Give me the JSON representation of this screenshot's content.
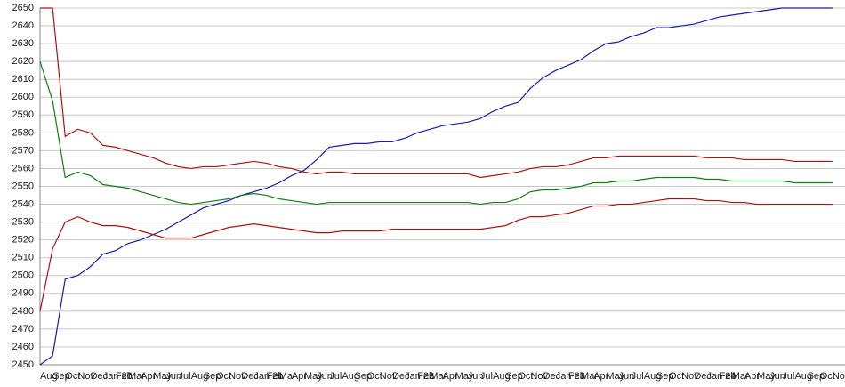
{
  "chart_data": {
    "type": "line",
    "categories": [
      "Aug",
      "Sep",
      "Oct",
      "Nov",
      "Dec",
      "Jan 20",
      "Feb",
      "Mar",
      "Apr",
      "May",
      "Jun",
      "Jul",
      "Aug",
      "Sep",
      "Oct",
      "Nov",
      "Dec",
      "Jan 21",
      "Feb",
      "Mar",
      "Apr",
      "May",
      "Jun",
      "Jul",
      "Aug",
      "Sep",
      "Oct",
      "Nov",
      "Dec",
      "Jan 22",
      "Feb",
      "Mar",
      "Apr",
      "May",
      "Jun",
      "Jul",
      "Aug",
      "Sep",
      "Oct",
      "Nov",
      "Dec",
      "Jan 23",
      "Feb",
      "Mar",
      "Apr",
      "May",
      "Jun",
      "Jul",
      "Aug",
      "Sep",
      "Oct",
      "Nov",
      "Dec",
      "Jan 24",
      "Feb",
      "Mar",
      "Apr",
      "May",
      "Jun",
      "Jul",
      "Aug",
      "Sep",
      "Oct",
      "Nov"
    ],
    "series": [
      {
        "color": "#1c1ca8",
        "values": [
          2450,
          2455,
          2498,
          2500,
          2505,
          2512,
          2514,
          2518,
          2520,
          2523,
          2526,
          2530,
          2534,
          2538,
          2540,
          2542,
          2545,
          2547,
          2549,
          2552,
          2556,
          2559,
          2565,
          2572,
          2573,
          2574,
          2574,
          2575,
          2575,
          2577,
          2580,
          2582,
          2584,
          2585,
          2586,
          2588,
          2592,
          2595,
          2597,
          2605,
          2611,
          2615,
          2618,
          2621,
          2626,
          2630,
          2631,
          2634,
          2636,
          2639,
          2639,
          2640,
          2641,
          2643,
          2645,
          2646,
          2647,
          2648,
          2649,
          2650,
          2650,
          2650,
          2650,
          2650
        ]
      },
      {
        "color": "#b01010",
        "values": [
          2650,
          2650,
          2578,
          2582,
          2580,
          2573,
          2572,
          2570,
          2568,
          2566,
          2563,
          2561,
          2560,
          2561,
          2561,
          2562,
          2563,
          2564,
          2563,
          2561,
          2560,
          2558,
          2557,
          2558,
          2558,
          2557,
          2557,
          2557,
          2557,
          2557,
          2557,
          2557,
          2557,
          2557,
          2557,
          2555,
          2556,
          2557,
          2558,
          2560,
          2561,
          2561,
          2562,
          2564,
          2566,
          2566,
          2567,
          2567,
          2567,
          2567,
          2567,
          2567,
          2567,
          2566,
          2566,
          2566,
          2565,
          2565,
          2565,
          2565,
          2564,
          2564,
          2564,
          2564
        ]
      },
      {
        "color": "#108010",
        "values": [
          2620,
          2598,
          2555,
          2558,
          2556,
          2551,
          2550,
          2549,
          2547,
          2545,
          2543,
          2541,
          2540,
          2541,
          2542,
          2543,
          2545,
          2546,
          2545,
          2543,
          2542,
          2541,
          2540,
          2541,
          2541,
          2541,
          2541,
          2541,
          2541,
          2541,
          2541,
          2541,
          2541,
          2541,
          2541,
          2540,
          2541,
          2541,
          2543,
          2547,
          2548,
          2548,
          2549,
          2550,
          2552,
          2552,
          2553,
          2553,
          2554,
          2555,
          2555,
          2555,
          2555,
          2554,
          2554,
          2553,
          2553,
          2553,
          2553,
          2553,
          2552,
          2552,
          2552,
          2552
        ]
      },
      {
        "color": "#b01010",
        "values": [
          2480,
          2515,
          2530,
          2533,
          2530,
          2528,
          2528,
          2527,
          2525,
          2523,
          2521,
          2521,
          2521,
          2523,
          2525,
          2527,
          2528,
          2529,
          2528,
          2527,
          2526,
          2525,
          2524,
          2524,
          2525,
          2525,
          2525,
          2525,
          2526,
          2526,
          2526,
          2526,
          2526,
          2526,
          2526,
          2526,
          2527,
          2528,
          2531,
          2533,
          2533,
          2534,
          2535,
          2537,
          2539,
          2539,
          2540,
          2540,
          2541,
          2542,
          2543,
          2543,
          2543,
          2542,
          2542,
          2541,
          2541,
          2540,
          2540,
          2540,
          2540,
          2540,
          2540,
          2540
        ]
      }
    ],
    "ylim": [
      2450,
      2650
    ],
    "yticks": [
      2450,
      2460,
      2470,
      2480,
      2490,
      2500,
      2510,
      2520,
      2530,
      2540,
      2550,
      2560,
      2570,
      2580,
      2590,
      2600,
      2610,
      2620,
      2630,
      2640,
      2650
    ],
    "grid": true
  }
}
